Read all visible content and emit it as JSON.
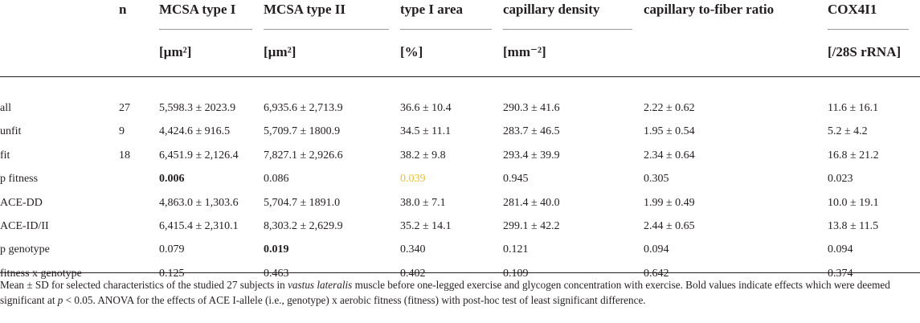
{
  "columns": [
    {
      "name": "",
      "unit": ""
    },
    {
      "name": "n",
      "unit": ""
    },
    {
      "name": "MCSA type I",
      "unit": "[µm²]"
    },
    {
      "name": "MCSA type II",
      "unit": "[µm²]"
    },
    {
      "name": "type I area",
      "unit": "[%]"
    },
    {
      "name": "capillary density",
      "unit": "[mm⁻²]"
    },
    {
      "name": "capillary to-fiber ratio",
      "unit": ""
    },
    {
      "name": "COX4I1",
      "unit": "[/28S rRNA]"
    }
  ],
  "rows": [
    {
      "label": "all",
      "n": "27",
      "mcsa1": "5,598.3 ± 2023.9",
      "mcsa2": "6,935.6 ± 2,713.9",
      "area": "36.6 ± 10.4",
      "capd": "290.3 ± 41.6",
      "cfr": "2.22 ± 0.62",
      "cox": "11.6 ± 16.1"
    },
    {
      "label": "unfit",
      "n": "9",
      "mcsa1": "4,424.6 ± 916.5",
      "mcsa2": "5,709.7 ± 1800.9",
      "area": "34.5 ± 11.1",
      "capd": "283.7 ± 46.5",
      "cfr": "1.95 ± 0.54",
      "cox": "5.2 ± 4.2"
    },
    {
      "label": "fit",
      "n": "18",
      "mcsa1": "6,451.9 ± 2,126.4",
      "mcsa2": "7,827.1 ± 2,926.6",
      "area": "38.2 ± 9.8",
      "capd": "293.4 ± 39.9",
      "cfr": "2.34 ± 0.64",
      "cox": "16.8 ± 21.2"
    },
    {
      "label": "p fitness",
      "n": "",
      "mcsa1": "0.006",
      "mcsa2": "0.086",
      "area": "0.039",
      "capd": "0.945",
      "cfr": "0.305",
      "cox": "0.023"
    },
    {
      "label": "ACE-DD",
      "n": "",
      "mcsa1": "4,863.0 ± 1,303.6",
      "mcsa2": "5,704.7 ± 1891.0",
      "area": "38.0 ± 7.1",
      "capd": "281.4 ± 40.0",
      "cfr": "1.99 ± 0.49",
      "cox": "10.0 ± 19.1"
    },
    {
      "label": "ACE-ID/II",
      "n": "",
      "mcsa1": "6,415.4 ± 2,310.1",
      "mcsa2": "8,303.2 ± 2,629.9",
      "area": "35.2 ± 14.1",
      "capd": "299.1 ± 42.2",
      "cfr": "2.44 ± 0.65",
      "cox": "13.8 ± 11.5"
    },
    {
      "label": "p genotype",
      "n": "",
      "mcsa1": "0.079",
      "mcsa2": "0.019",
      "area": "0.340",
      "capd": "0.121",
      "cfr": "0.094",
      "cox": "0.094"
    },
    {
      "label": "fitness x genotype",
      "n": "",
      "mcsa1": "0.125",
      "mcsa2": "0.463",
      "area": "0.402",
      "capd": "0.109",
      "cfr": "0.642",
      "cox": "0.374"
    }
  ],
  "footnote": {
    "part1": "Mean ± SD for selected characteristics of the studied 27 subjects in ",
    "italic1": "vastus lateralis",
    "part2": " muscle before one-legged exercise and glycogen concentration with exercise. Bold values indicate effects which were deemed significant at ",
    "italic2": "p",
    "part3": " < 0.05. ANOVA for the effects of ACE I-allele (i.e., genotype) x aerobic fitness (fitness) with post-hoc test of least significant difference."
  },
  "colors": {
    "text": "#231f20",
    "highlight": "#f2c12e",
    "rule": "#231f20",
    "subrule": "#9a9a9a"
  }
}
